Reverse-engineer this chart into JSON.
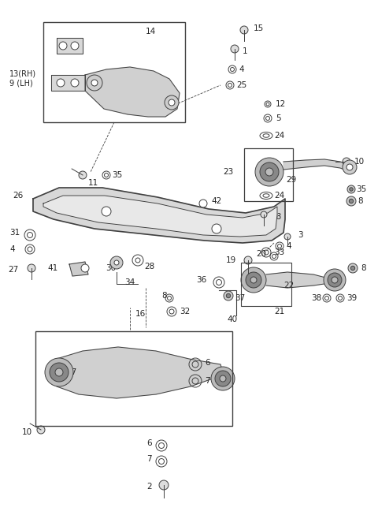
{
  "bg_color": "#ffffff",
  "line_color": "#404040",
  "fig_width": 4.8,
  "fig_height": 6.72,
  "dpi": 100,
  "xlim": [
    0,
    480
  ],
  "ylim": [
    0,
    672
  ]
}
